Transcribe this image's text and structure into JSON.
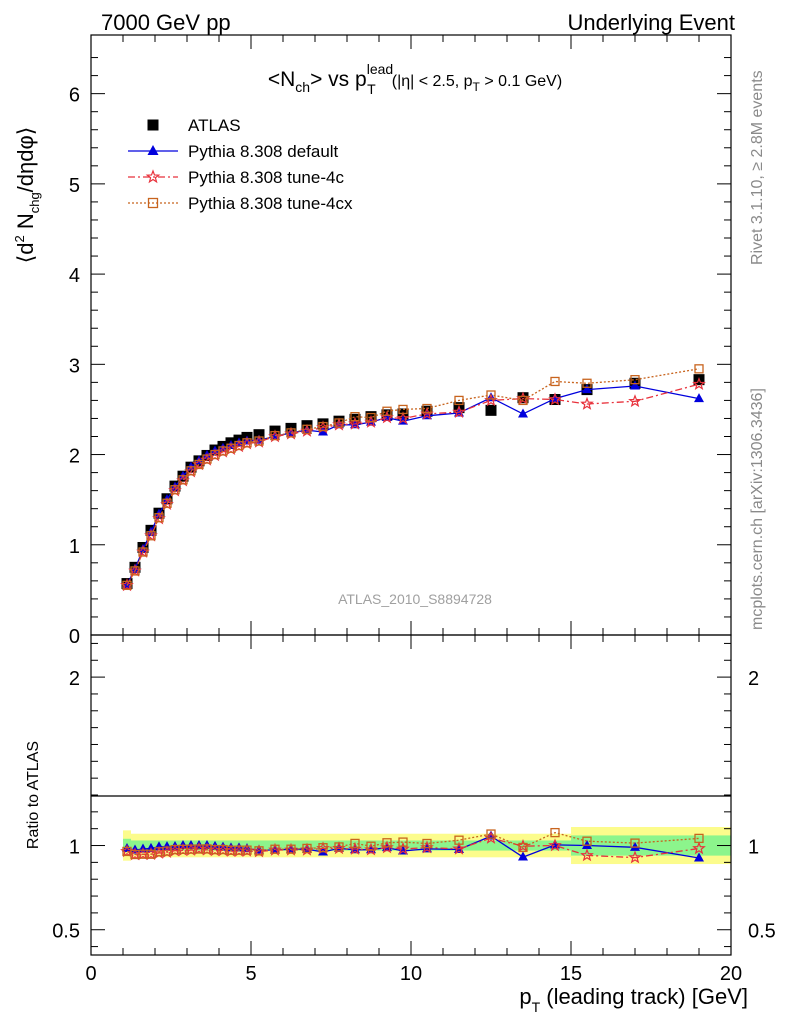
{
  "header": {
    "left": "7000 GeV pp",
    "right": "Underlying Event"
  },
  "side": {
    "rivet": "Rivet 3.1.10, ≥ 2.8M events",
    "mcplots": "mcplots.cern.ch [arXiv:1306.3436]"
  },
  "chart_data": {
    "type": "scatter",
    "title": "<Nch> vs pT^lead (|η| < 2.5, pT > 0.1 GeV)",
    "analysis_label": "ATLAS_2010_S8894728",
    "xlabel": "pT (leading track) [GeV]",
    "ylabel_main": "⟨d² Nchg/dηdφ⟩",
    "ylabel_ratio": "Ratio to ATLAS",
    "xlim": [
      0,
      20
    ],
    "ylim_main": [
      0,
      6.65
    ],
    "ylim_ratio": [
      0.35,
      2.25
    ],
    "x_ticks": [
      "0",
      "5",
      "10",
      "15",
      "20"
    ],
    "y_ticks_main": [
      "0",
      "1",
      "2",
      "3",
      "4",
      "5",
      "6"
    ],
    "y_ticks_ratio": [
      "0.5",
      "1",
      "2"
    ],
    "legend_position": "top-left",
    "x": [
      1.125,
      1.375,
      1.625,
      1.875,
      2.125,
      2.375,
      2.625,
      2.875,
      3.125,
      3.375,
      3.625,
      3.875,
      4.125,
      4.375,
      4.625,
      4.875,
      5.25,
      5.75,
      6.25,
      6.75,
      7.25,
      7.75,
      8.25,
      8.75,
      9.25,
      9.75,
      10.5,
      11.5,
      12.5,
      13.5,
      14.5,
      15.5,
      17.0,
      19.0
    ],
    "series": [
      {
        "name": "ATLAS",
        "marker": "square",
        "color": "#000000",
        "values": [
          0.57,
          0.75,
          0.97,
          1.16,
          1.35,
          1.51,
          1.65,
          1.76,
          1.86,
          1.93,
          1.99,
          2.05,
          2.09,
          2.13,
          2.16,
          2.19,
          2.22,
          2.26,
          2.29,
          2.32,
          2.34,
          2.37,
          2.39,
          2.42,
          2.44,
          2.45,
          2.48,
          2.52,
          2.49,
          2.63,
          2.61,
          2.72,
          2.79,
          2.83
        ]
      },
      {
        "name": "Pythia 8.308 default",
        "marker": "triangle",
        "color": "#0000dd",
        "line": "solid",
        "values": [
          0.56,
          0.73,
          0.95,
          1.14,
          1.34,
          1.5,
          1.64,
          1.76,
          1.86,
          1.93,
          1.99,
          2.04,
          2.07,
          2.1,
          2.13,
          2.15,
          2.16,
          2.2,
          2.24,
          2.27,
          2.25,
          2.33,
          2.33,
          2.36,
          2.41,
          2.37,
          2.43,
          2.46,
          2.63,
          2.45,
          2.62,
          2.72,
          2.76,
          2.62
        ]
      },
      {
        "name": "Pythia 8.308 tune-4c",
        "marker": "star",
        "color": "#e8323c",
        "line": "dashdot",
        "values": [
          0.55,
          0.71,
          0.92,
          1.1,
          1.29,
          1.45,
          1.6,
          1.71,
          1.81,
          1.89,
          1.94,
          1.99,
          2.03,
          2.06,
          2.09,
          2.12,
          2.14,
          2.2,
          2.23,
          2.26,
          2.3,
          2.33,
          2.34,
          2.36,
          2.41,
          2.4,
          2.45,
          2.47,
          2.6,
          2.62,
          2.61,
          2.56,
          2.59,
          2.78
        ]
      },
      {
        "name": "Pythia 8.308 tune-4cx",
        "marker": "opensquare",
        "color": "#c8641e",
        "line": "dotted",
        "values": [
          0.55,
          0.71,
          0.92,
          1.1,
          1.3,
          1.46,
          1.61,
          1.72,
          1.82,
          1.89,
          1.95,
          2.0,
          2.04,
          2.07,
          2.1,
          2.13,
          2.15,
          2.21,
          2.24,
          2.28,
          2.31,
          2.35,
          2.42,
          2.41,
          2.48,
          2.5,
          2.51,
          2.6,
          2.66,
          2.6,
          2.81,
          2.79,
          2.83,
          2.95
        ]
      }
    ],
    "uncertainty_bands": {
      "inner_color": "#8cf58c",
      "outer_color": "#fcfc8c"
    }
  }
}
